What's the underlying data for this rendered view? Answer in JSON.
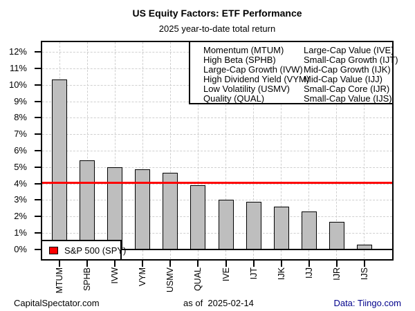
{
  "header": {
    "title": "US Equity Factors: ETF Performance",
    "subtitle": "2025 year-to-date total return"
  },
  "chart_data": {
    "type": "bar",
    "title": "US Equity Factors: ETF Performance",
    "subtitle": "2025 year-to-date total return",
    "xlabel": "",
    "ylabel": "",
    "categories": [
      "MTUM",
      "SPHB",
      "IVW",
      "VYM",
      "USMV",
      "QUAL",
      "IVE",
      "IJT",
      "IJK",
      "IJJ",
      "IJR",
      "IJS"
    ],
    "values": [
      10.35,
      5.4,
      5.0,
      4.85,
      4.65,
      3.9,
      3.0,
      2.9,
      2.6,
      2.3,
      1.65,
      0.3
    ],
    "ylim": [
      -0.6,
      12.6
    ],
    "ytick_values": [
      0,
      1,
      2,
      3,
      4,
      5,
      6,
      7,
      8,
      9,
      10,
      11,
      12
    ],
    "ytick_suffix": "%",
    "grid": true,
    "legend_position": "top-right",
    "bar_color": "#bebebe",
    "bar_border_color": "#000000",
    "gridline_color": "#cfcfcf",
    "benchmark_line": {
      "label": "S&P 500 (SPY)",
      "value": 4.03,
      "color": "#ff0000"
    }
  },
  "factor_legend": {
    "columns": [
      [
        "Momentum (MTUM)",
        "High Beta (SPHB)",
        "Large-Cap Growth (IVW)",
        "High Dividend Yield (VYM)",
        "Low Volatility (USMV)",
        "Quality (QUAL)"
      ],
      [
        "Large-Cap Value (IVE)",
        "Small-Cap Growth (IJT)",
        "Mid-Cap Growth (IJK)",
        "Mid-Cap Value (IJJ)",
        "Small-Cap Core (IJR)",
        "Small-Cap Value (IJS)"
      ]
    ]
  },
  "footer": {
    "left": "CapitalSpectator.com",
    "center": "as of  2025-02-14",
    "right": "Data: Tiingo.com",
    "right_color": "#00008b"
  }
}
